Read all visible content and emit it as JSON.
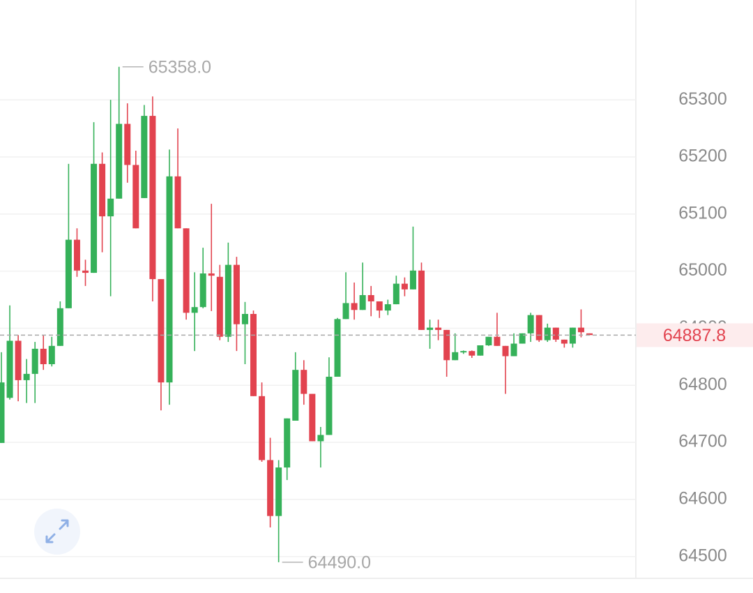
{
  "chart_data": {
    "type": "candlestick",
    "colors": {
      "up": "#35b159",
      "down": "#e2434f"
    },
    "ylim": [
      64463,
      65475
    ],
    "yticks": [
      64500,
      64600,
      64700,
      64800,
      64900,
      65000,
      65100,
      65200,
      65300
    ],
    "grid": true,
    "last_price": 64887.8,
    "annotations": {
      "max": "65358.0",
      "min": "64490.0"
    },
    "open": [
      64699,
      64778,
      64878,
      64809,
      64820,
      64864,
      64837,
      64869,
      64935,
      65055,
      65001,
      64997,
      65188,
      65096,
      65127,
      65258,
      65186,
      65128,
      65272,
      64986,
      64805,
      65166,
      65075,
      64927,
      64937,
      64996,
      64990,
      64885,
      65011,
      64907,
      64925,
      64781,
      64669,
      64571,
      64656,
      64738,
      64827,
      64785,
      64702,
      64713,
      64815,
      64916,
      64944,
      64932,
      64958,
      64947,
      64931,
      64942,
      64978,
      64968,
      65001,
      64897,
      64901,
      64897,
      64844,
      64858,
      64860,
      64852,
      64870,
      64885,
      64869,
      64851,
      64873,
      64891,
      64923,
      64879,
      64901,
      64880,
      64873,
      64901,
      64891
    ],
    "high": [
      64858,
      64940,
      64888,
      64846,
      64876,
      64888,
      64885,
      64947,
      65188,
      65075,
      65020,
      65261,
      65208,
      65300,
      65358,
      65294,
      65211,
      65291,
      65306,
      64986,
      65213,
      65250,
      65075,
      64998,
      65041,
      65118,
      65011,
      65050,
      65025,
      64946,
      64931,
      64805,
      64708,
      64669,
      64742,
      64858,
      64844,
      64785,
      64727,
      64849,
      64918,
      64998,
      64980,
      65015,
      64974,
      64947,
      64950,
      64992,
      64989,
      65078,
      65015,
      64915,
      64915,
      64897,
      64891,
      64861,
      64861,
      64870,
      64885,
      64927,
      64869,
      64891,
      64891,
      64927,
      64923,
      64908,
      64901,
      64880,
      64901,
      64933,
      64891
    ],
    "low": [
      64699,
      64775,
      64772,
      64769,
      64769,
      64827,
      64833,
      64869,
      64935,
      64990,
      64974,
      64997,
      65033,
      64956,
      65127,
      65155,
      65075,
      65128,
      64947,
      64756,
      64766,
      65075,
      64915,
      64860,
      64935,
      64930,
      64879,
      64876,
      64860,
      64837,
      64781,
      64666,
      64551,
      64490,
      64634,
      64738,
      64766,
      64702,
      64656,
      64713,
      64815,
      64916,
      64915,
      64932,
      64921,
      64918,
      64923,
      64942,
      64956,
      64968,
      64897,
      64864,
      64879,
      64815,
      64844,
      64855,
      64848,
      64852,
      64869,
      64869,
      64785,
      64851,
      64873,
      64876,
      64876,
      64876,
      64876,
      64866,
      64866,
      64884,
      64888
    ],
    "close": [
      64805,
      64878,
      64809,
      64820,
      64864,
      64837,
      64869,
      64935,
      65055,
      65001,
      64997,
      65188,
      65096,
      65127,
      65258,
      65186,
      65075,
      65272,
      64986,
      64805,
      65166,
      65075,
      64927,
      64937,
      64996,
      64992,
      64885,
      65011,
      64907,
      64925,
      64781,
      64669,
      64571,
      64656,
      64742,
      64827,
      64785,
      64702,
      64713,
      64815,
      64916,
      64944,
      64932,
      64958,
      64947,
      64931,
      64942,
      64978,
      64968,
      65001,
      64897,
      64901,
      64897,
      64844,
      64858,
      64860,
      64852,
      64870,
      64885,
      64869,
      64851,
      64873,
      64891,
      64923,
      64879,
      64901,
      64880,
      64873,
      64901,
      64893,
      64888
    ]
  }
}
